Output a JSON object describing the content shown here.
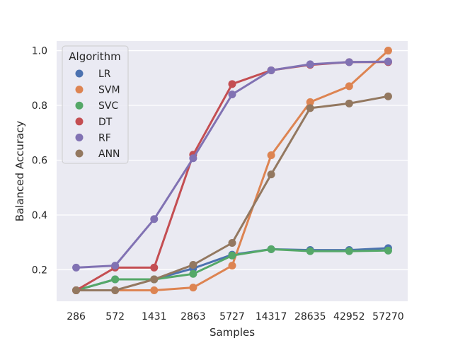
{
  "chart_data": {
    "type": "line",
    "xlabel": "Samples",
    "ylabel": "Balanced Accuracy",
    "categories": [
      "286",
      "572",
      "1431",
      "2863",
      "5727",
      "14317",
      "28635",
      "42952",
      "57270"
    ],
    "ylim": [
      0.085,
      1.035
    ],
    "yticks": [
      "0.2",
      "0.4",
      "0.6",
      "0.8",
      "1.0"
    ],
    "grid": true,
    "legend": {
      "title": "Algorithm",
      "placement": "top-left"
    },
    "series": [
      {
        "name": "LR",
        "color": "#4c72b0",
        "values": [
          0.125,
          0.165,
          0.165,
          0.205,
          0.255,
          0.275,
          0.272,
          0.272,
          0.279
        ]
      },
      {
        "name": "SVM",
        "color": "#dd8452",
        "values": [
          0.125,
          0.125,
          0.125,
          0.135,
          0.215,
          0.618,
          0.812,
          0.87,
          1.0
        ]
      },
      {
        "name": "SVC",
        "color": "#55a868",
        "values": [
          0.125,
          0.165,
          0.165,
          0.185,
          0.252,
          0.275,
          0.268,
          0.268,
          0.27
        ]
      },
      {
        "name": "DT",
        "color": "#c44e52",
        "values": [
          0.125,
          0.208,
          0.208,
          0.62,
          0.878,
          0.928,
          0.948,
          0.958,
          0.958
        ]
      },
      {
        "name": "RF",
        "color": "#8172b3",
        "values": [
          0.208,
          0.215,
          0.385,
          0.607,
          0.84,
          0.928,
          0.95,
          0.958,
          0.96
        ]
      },
      {
        "name": "ANN",
        "color": "#937860",
        "values": [
          0.125,
          0.125,
          0.165,
          0.218,
          0.298,
          0.548,
          0.79,
          0.807,
          0.833
        ]
      }
    ]
  }
}
